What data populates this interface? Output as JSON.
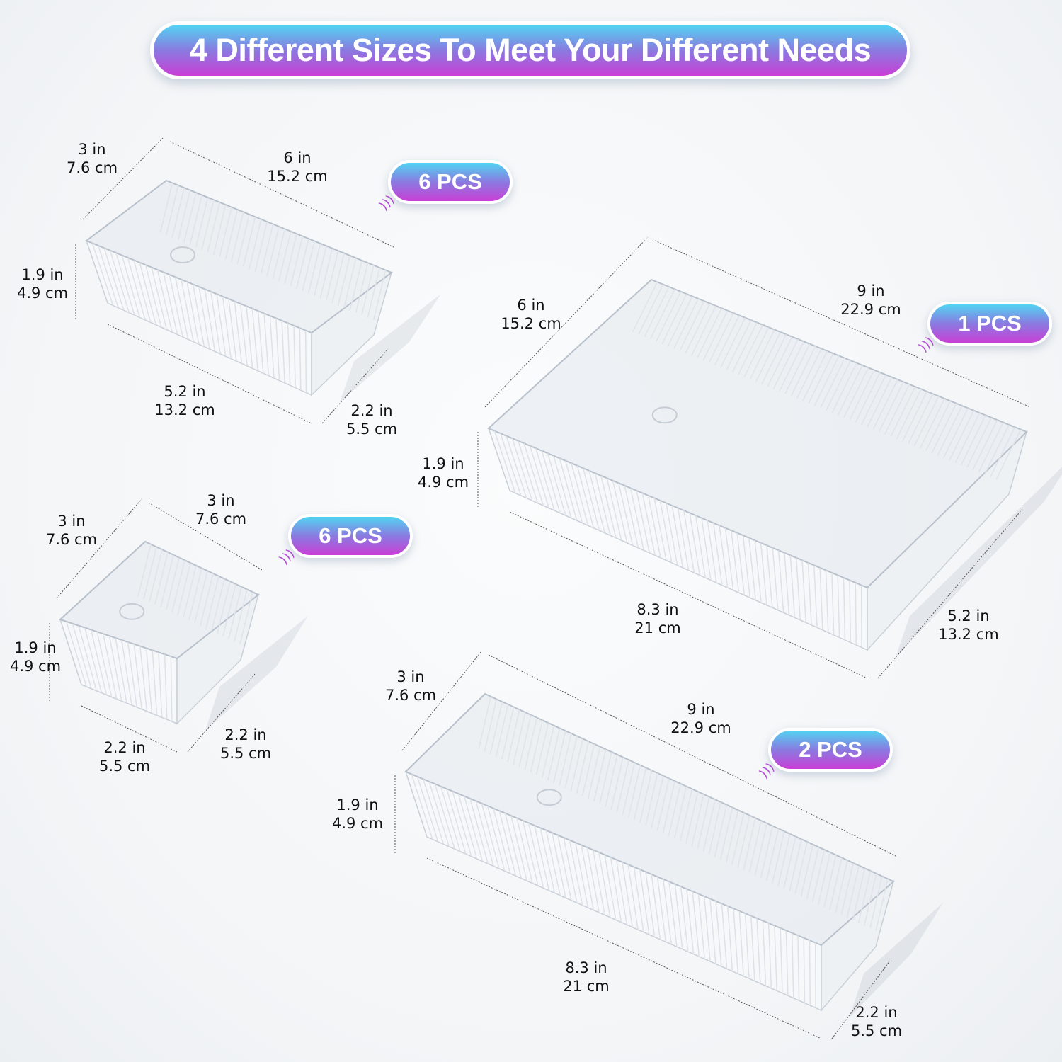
{
  "title": "4 Different Sizes To Meet Your Different Needs",
  "trays": [
    {
      "badge": "6 PCS",
      "dims": [
        {
          "in": "3 in",
          "cm": "7.6 cm"
        },
        {
          "in": "6 in",
          "cm": "15.2 cm"
        },
        {
          "in": "1.9 in",
          "cm": "4.9 cm"
        },
        {
          "in": "5.2 in",
          "cm": "13.2 cm"
        },
        {
          "in": "2.2 in",
          "cm": "5.5 cm"
        }
      ]
    },
    {
      "badge": "1 PCS",
      "dims": [
        {
          "in": "6 in",
          "cm": "15.2 cm"
        },
        {
          "in": "9 in",
          "cm": "22.9 cm"
        },
        {
          "in": "1.9 in",
          "cm": "4.9 cm"
        },
        {
          "in": "8.3 in",
          "cm": "21 cm"
        },
        {
          "in": "5.2 in",
          "cm": "13.2 cm"
        }
      ]
    },
    {
      "badge": "6 PCS",
      "dims": [
        {
          "in": "3 in",
          "cm": "7.6 cm"
        },
        {
          "in": "3 in",
          "cm": "7.6 cm"
        },
        {
          "in": "1.9 in",
          "cm": "4.9 cm"
        },
        {
          "in": "2.2 in",
          "cm": "5.5 cm"
        },
        {
          "in": "2.2 in",
          "cm": "5.5 cm"
        }
      ]
    },
    {
      "badge": "2 PCS",
      "dims": [
        {
          "in": "3 in",
          "cm": "7.6 cm"
        },
        {
          "in": "9 in",
          "cm": "22.9 cm"
        },
        {
          "in": "1.9 in",
          "cm": "4.9 cm"
        },
        {
          "in": "8.3 in",
          "cm": "21 cm"
        },
        {
          "in": "2.2 in",
          "cm": "5.5 cm"
        }
      ]
    }
  ],
  "colors": {
    "gradient_top": "#52d4f2",
    "gradient_bottom": "#c93fd6",
    "text": "#111111"
  }
}
